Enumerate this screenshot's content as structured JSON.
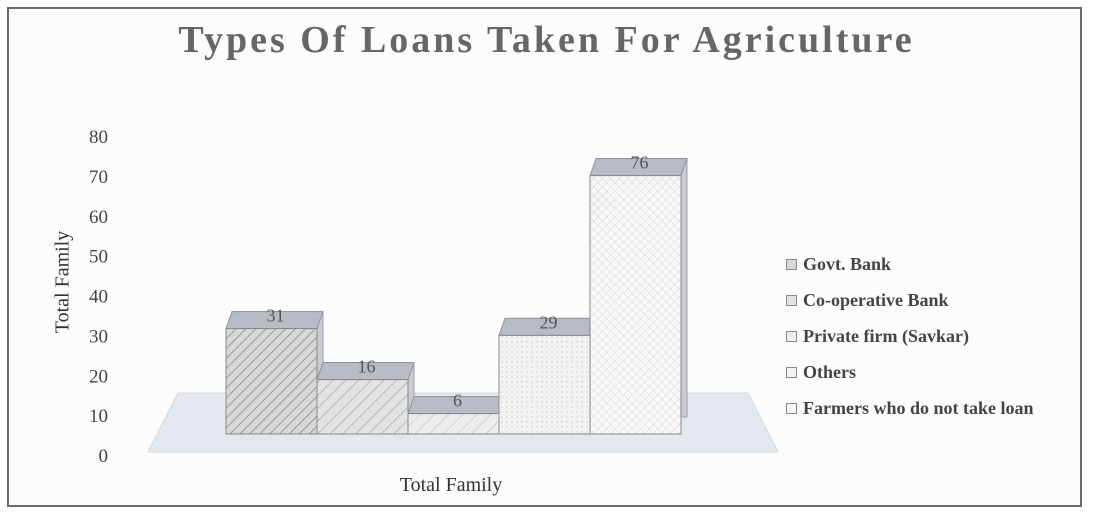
{
  "chart_data": {
    "type": "bar",
    "title": "Types Of Loans Taken For Agriculture",
    "xlabel": "Total Family",
    "ylabel": "Total Family",
    "categories": [
      "Total Family"
    ],
    "ylim": [
      0,
      80
    ],
    "yticks": [
      0,
      10,
      20,
      30,
      40,
      50,
      60,
      70,
      80
    ],
    "series": [
      {
        "name": "Govt. Bank",
        "values": [
          31
        ],
        "color": "#d8d8d8"
      },
      {
        "name": "Co-operative Bank",
        "values": [
          16
        ],
        "color": "#e2e2e2"
      },
      {
        "name": "Private firm (Savkar)",
        "values": [
          6
        ],
        "color": "#ececec"
      },
      {
        "name": "Others",
        "values": [
          29
        ],
        "color": "#f3f3f3"
      },
      {
        "name": "Farmers who do not take loan",
        "values": [
          76
        ],
        "color": "#f7f7f7"
      }
    ],
    "legend_position": "right",
    "grid": false,
    "style": "3d"
  }
}
